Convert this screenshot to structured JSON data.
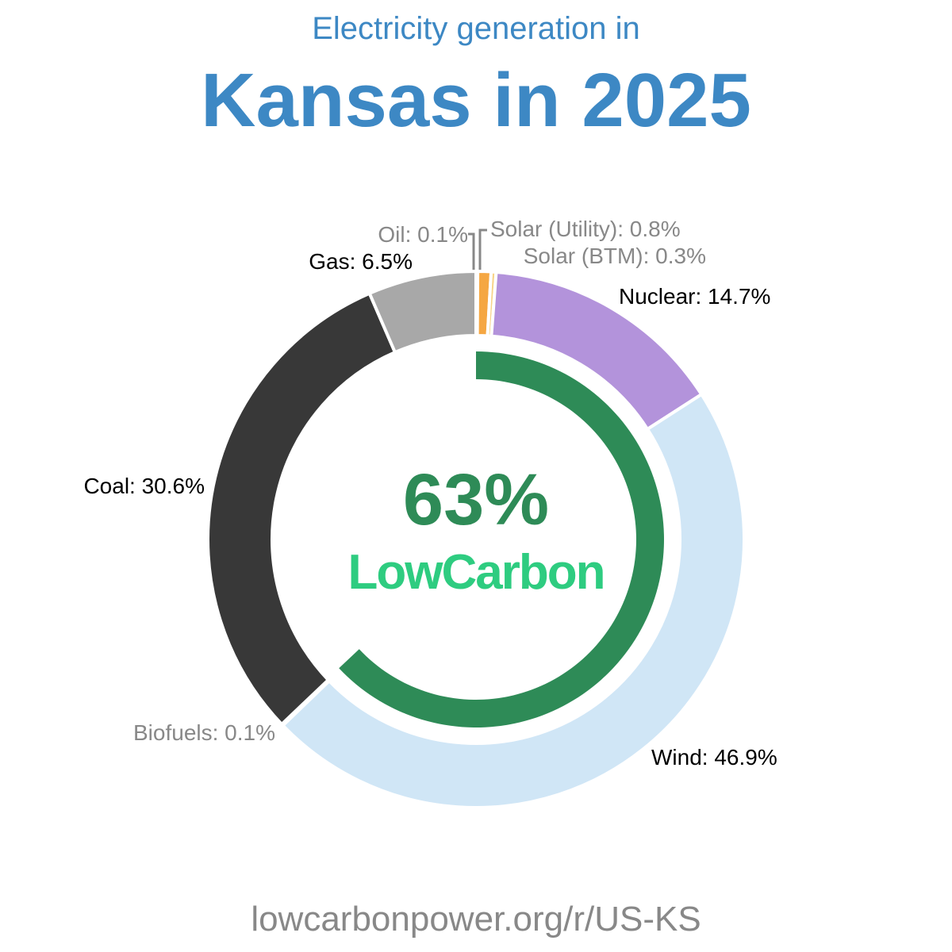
{
  "header": {
    "subtitle": "Electricity generation in",
    "title": "Kansas in 2025"
  },
  "center": {
    "percent": "63%",
    "brand": "LowCarbon"
  },
  "footer": {
    "url": "lowcarbonpower.org/r/US-KS"
  },
  "labels": {
    "oil": "Oil: 0.1%",
    "solar_utility": "Solar (Utility): 0.8%",
    "solar_btm": "Solar (BTM): 0.3%",
    "nuclear": "Nuclear: 14.7%",
    "wind": "Wind: 46.9%",
    "biofuels": "Biofuels: 0.1%",
    "coal": "Coal: 30.6%",
    "gas": "Gas: 6.5%"
  },
  "colors": {
    "title": "#3d88c4",
    "low_carbon_arc": "#2e8b57",
    "brand": "#2ecc80",
    "label_major": "#000000",
    "label_minor": "#888888"
  },
  "chart_data": {
    "type": "pie",
    "variant": "donut",
    "title": "Kansas in 2025",
    "subtitle": "Electricity generation in",
    "unit": "%",
    "categories": [
      "Oil",
      "Solar (Utility)",
      "Solar (BTM)",
      "Nuclear",
      "Wind",
      "Biofuels",
      "Coal",
      "Gas"
    ],
    "values": [
      0.1,
      0.8,
      0.3,
      14.7,
      46.9,
      0.1,
      30.6,
      6.5
    ],
    "colors": [
      "#5a3a1a",
      "#f5a742",
      "#f8d48a",
      "#b393db",
      "#d0e6f6",
      "#2e8b57",
      "#383838",
      "#a8a8a8"
    ],
    "start_angle_deg": 0,
    "direction": "clockwise",
    "low_carbon_share": 63,
    "low_carbon_label": "LowCarbon",
    "source": "lowcarbonpower.org/r/US-KS"
  }
}
